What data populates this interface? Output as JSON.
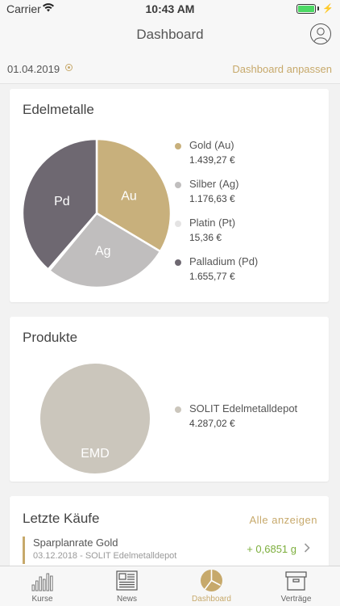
{
  "status_bar": {
    "carrier": "Carrier",
    "time": "10:43 AM"
  },
  "header": {
    "title": "Dashboard"
  },
  "date_row": {
    "date": "01.04.2019",
    "customize": "Dashboard anpassen"
  },
  "colors": {
    "accent": "#c7a96b",
    "gold": "#c8b07c",
    "silver": "#c0bebe",
    "platinum": "#e4e3e3",
    "palladium": "#6e6871",
    "emd": "#cbc6bc",
    "positive": "#7cae3c"
  },
  "metals_card": {
    "title": "Edelmetalle",
    "legend": [
      {
        "name": "Gold (Au)",
        "value": "1.439,27 €"
      },
      {
        "name": "Silber (Ag)",
        "value": "1.176,63 €"
      },
      {
        "name": "Platin (Pt)",
        "value": "15,36 €"
      },
      {
        "name": "Palladium (Pd)",
        "value": "1.655,77 €"
      }
    ]
  },
  "products_card": {
    "title": "Produkte",
    "legend": [
      {
        "name": "SOLIT Edelmetalldepot",
        "value": "4.287,02 €"
      }
    ]
  },
  "purchases_card": {
    "title": "Letzte Käufe",
    "see_all": "Alle anzeigen",
    "items": [
      {
        "title": "Sparplanrate Gold",
        "subtitle": "03.12.2018 - SOLIT Edelmetalldepot",
        "amount": "+ 0,6851 g"
      }
    ]
  },
  "chart_data": [
    {
      "type": "pie",
      "title": "Edelmetalle",
      "categories": [
        "Au",
        "Ag",
        "Pt",
        "Pd"
      ],
      "values": [
        1439.27,
        1176.63,
        15.36,
        1655.77
      ],
      "colors": [
        "#c8b07c",
        "#c0bebe",
        "#e4e3e3",
        "#6e6871"
      ],
      "labels": [
        "Au",
        "Ag",
        "",
        "Pd"
      ]
    },
    {
      "type": "pie",
      "title": "Produkte",
      "categories": [
        "EMD"
      ],
      "values": [
        4287.02
      ],
      "colors": [
        "#cbc6bc"
      ],
      "labels": [
        "EMD"
      ]
    }
  ],
  "tab_bar": {
    "tabs": [
      {
        "label": "Kurse",
        "icon": "bar-chart-icon"
      },
      {
        "label": "News",
        "icon": "newspaper-icon"
      },
      {
        "label": "Dashboard",
        "icon": "dashboard-icon"
      },
      {
        "label": "Verträge",
        "icon": "archive-box-icon"
      }
    ],
    "active": "Dashboard"
  }
}
